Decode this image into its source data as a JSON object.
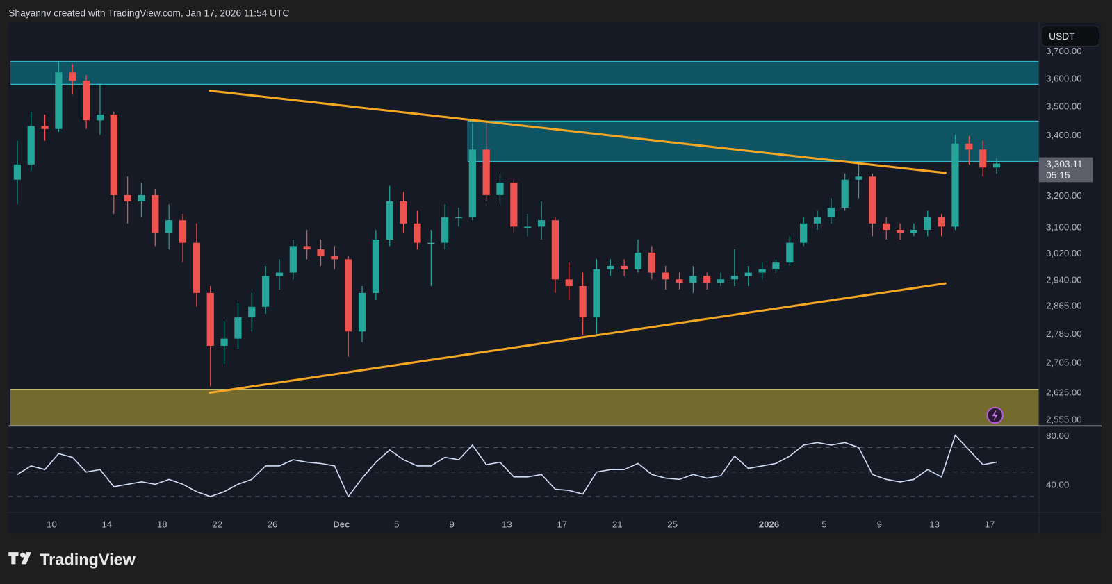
{
  "header": {
    "attribution": "Shayannv created with TradingView.com, Jan 17, 2026 11:54 UTC"
  },
  "logo": {
    "text": "TradingView"
  },
  "currency_button": {
    "label": "USDT"
  },
  "current_price": {
    "label": "3,303.11",
    "countdown": "05:15"
  },
  "colors": {
    "background": "#1e1e1e",
    "chart_bg": "#161a25",
    "up": "#26a69a",
    "down": "#ef5350",
    "resistance_zone": "#0f5463",
    "zone_border": "#2bb8cc",
    "support_zone": "#736b2d",
    "support_border": "#d6cf7a",
    "trendline": "#f5a623",
    "rsi_line": "#cfdcf5",
    "grid_dash": "#5a5e6a"
  },
  "chart_data": [
    {
      "type": "candlestick",
      "title": "",
      "y_scale": "log",
      "ylim": [
        2535,
        3720
      ],
      "grid": false,
      "y_ticks": [
        {
          "value": 3700,
          "label": "3,700.00"
        },
        {
          "value": 3600,
          "label": "3,600.00"
        },
        {
          "value": 3500,
          "label": "3,500.00"
        },
        {
          "value": 3400,
          "label": "3,400.00"
        },
        {
          "value": 3200,
          "label": "3,200.00"
        },
        {
          "value": 3100,
          "label": "3,100.00"
        },
        {
          "value": 3020,
          "label": "3,020.00"
        },
        {
          "value": 2940,
          "label": "2,940.00"
        },
        {
          "value": 2865,
          "label": "2,865.00"
        },
        {
          "value": 2785,
          "label": "2,785.00"
        },
        {
          "value": 2705,
          "label": "2,705.00"
        },
        {
          "value": 2625,
          "label": "2,625.00"
        },
        {
          "value": 2555,
          "label": "2,555.00"
        }
      ],
      "x_ticks": [
        {
          "date": "2025-11-10",
          "label": "10"
        },
        {
          "date": "2025-11-14",
          "label": "14"
        },
        {
          "date": "2025-11-18",
          "label": "18"
        },
        {
          "date": "2025-11-22",
          "label": "22"
        },
        {
          "date": "2025-11-26",
          "label": "26"
        },
        {
          "date": "2025-12-01",
          "label": "Dec"
        },
        {
          "date": "2025-12-05",
          "label": "5"
        },
        {
          "date": "2025-12-09",
          "label": "9"
        },
        {
          "date": "2025-12-13",
          "label": "13"
        },
        {
          "date": "2025-12-17",
          "label": "17"
        },
        {
          "date": "2025-12-21",
          "label": "21"
        },
        {
          "date": "2025-12-25",
          "label": "25"
        },
        {
          "date": "2026-01-01",
          "label": "2026"
        },
        {
          "date": "2026-01-05",
          "label": "5"
        },
        {
          "date": "2026-01-09",
          "label": "9"
        },
        {
          "date": "2026-01-13",
          "label": "13"
        },
        {
          "date": "2026-01-17",
          "label": "17"
        }
      ],
      "ohlc_columns": [
        "date",
        "open",
        "high",
        "low",
        "close"
      ],
      "ohlc": [
        [
          "2025-11-07",
          3250,
          3380,
          3170,
          3300
        ],
        [
          "2025-11-08",
          3300,
          3480,
          3280,
          3430
        ],
        [
          "2025-11-09",
          3430,
          3470,
          3380,
          3420
        ],
        [
          "2025-11-10",
          3420,
          3660,
          3410,
          3620
        ],
        [
          "2025-11-11",
          3620,
          3650,
          3540,
          3590
        ],
        [
          "2025-11-12",
          3590,
          3610,
          3420,
          3450
        ],
        [
          "2025-11-13",
          3450,
          3580,
          3400,
          3470
        ],
        [
          "2025-11-14",
          3470,
          3480,
          3140,
          3200
        ],
        [
          "2025-11-15",
          3200,
          3260,
          3110,
          3180
        ],
        [
          "2025-11-16",
          3180,
          3240,
          3130,
          3200
        ],
        [
          "2025-11-17",
          3200,
          3220,
          3040,
          3080
        ],
        [
          "2025-11-18",
          3080,
          3170,
          3030,
          3120
        ],
        [
          "2025-11-19",
          3120,
          3140,
          2990,
          3050
        ],
        [
          "2025-11-20",
          3050,
          3110,
          2860,
          2900
        ],
        [
          "2025-11-21",
          2900,
          2920,
          2640,
          2750
        ],
        [
          "2025-11-22",
          2750,
          2820,
          2700,
          2770
        ],
        [
          "2025-11-23",
          2770,
          2870,
          2740,
          2830
        ],
        [
          "2025-11-24",
          2830,
          2900,
          2790,
          2860
        ],
        [
          "2025-11-25",
          2860,
          2980,
          2840,
          2950
        ],
        [
          "2025-11-26",
          2950,
          3000,
          2910,
          2960
        ],
        [
          "2025-11-27",
          2960,
          3060,
          2940,
          3040
        ],
        [
          "2025-11-28",
          3040,
          3090,
          3000,
          3030
        ],
        [
          "2025-11-29",
          3030,
          3060,
          2980,
          3010
        ],
        [
          "2025-11-30",
          3010,
          3040,
          2970,
          3000
        ],
        [
          "2025-12-01",
          3000,
          3010,
          2720,
          2790
        ],
        [
          "2025-12-02",
          2790,
          2920,
          2760,
          2900
        ],
        [
          "2025-12-03",
          2900,
          3090,
          2880,
          3060
        ],
        [
          "2025-12-04",
          3060,
          3230,
          3040,
          3180
        ],
        [
          "2025-12-05",
          3180,
          3210,
          3080,
          3110
        ],
        [
          "2025-12-06",
          3110,
          3150,
          3030,
          3050
        ],
        [
          "2025-12-07",
          3050,
          3090,
          2920,
          3050
        ],
        [
          "2025-12-08",
          3050,
          3170,
          3030,
          3130
        ],
        [
          "2025-12-09",
          3130,
          3160,
          3100,
          3130
        ],
        [
          "2025-12-10",
          3130,
          3440,
          3120,
          3350
        ],
        [
          "2025-12-11",
          3350,
          3450,
          3180,
          3200
        ],
        [
          "2025-12-12",
          3200,
          3270,
          3170,
          3240
        ],
        [
          "2025-12-13",
          3240,
          3250,
          3080,
          3100
        ],
        [
          "2025-12-14",
          3100,
          3140,
          3070,
          3100
        ],
        [
          "2025-12-15",
          3100,
          3180,
          3060,
          3120
        ],
        [
          "2025-12-16",
          3120,
          3130,
          2900,
          2940
        ],
        [
          "2025-12-17",
          2940,
          2990,
          2880,
          2920
        ],
        [
          "2025-12-18",
          2920,
          2960,
          2780,
          2830
        ],
        [
          "2025-12-19",
          2830,
          3000,
          2780,
          2970
        ],
        [
          "2025-12-20",
          2970,
          3000,
          2950,
          2980
        ],
        [
          "2025-12-21",
          2980,
          3000,
          2950,
          2970
        ],
        [
          "2025-12-22",
          2970,
          3060,
          2960,
          3020
        ],
        [
          "2025-12-23",
          3020,
          3040,
          2940,
          2960
        ],
        [
          "2025-12-24",
          2960,
          2980,
          2910,
          2940
        ],
        [
          "2025-12-25",
          2940,
          2960,
          2910,
          2930
        ],
        [
          "2025-12-26",
          2930,
          2980,
          2900,
          2950
        ],
        [
          "2025-12-27",
          2950,
          2960,
          2910,
          2930
        ],
        [
          "2025-12-28",
          2930,
          2960,
          2920,
          2940
        ],
        [
          "2025-12-29",
          2940,
          3030,
          2920,
          2950
        ],
        [
          "2025-12-30",
          2950,
          2980,
          2920,
          2960
        ],
        [
          "2025-12-31",
          2960,
          2990,
          2940,
          2970
        ],
        [
          "2026-01-01",
          2970,
          3000,
          2960,
          2990
        ],
        [
          "2026-01-02",
          2990,
          3070,
          2980,
          3050
        ],
        [
          "2026-01-03",
          3050,
          3130,
          3040,
          3110
        ],
        [
          "2026-01-04",
          3110,
          3150,
          3090,
          3130
        ],
        [
          "2026-01-05",
          3130,
          3190,
          3110,
          3160
        ],
        [
          "2026-01-06",
          3160,
          3270,
          3150,
          3250
        ],
        [
          "2026-01-07",
          3250,
          3305,
          3190,
          3260
        ],
        [
          "2026-01-08",
          3260,
          3270,
          3070,
          3110
        ],
        [
          "2026-01-09",
          3110,
          3130,
          3060,
          3090
        ],
        [
          "2026-01-10",
          3090,
          3110,
          3060,
          3080
        ],
        [
          "2026-01-11",
          3080,
          3110,
          3070,
          3090
        ],
        [
          "2026-01-12",
          3090,
          3150,
          3070,
          3130
        ],
        [
          "2026-01-13",
          3130,
          3140,
          3070,
          3100
        ],
        [
          "2026-01-14",
          3100,
          3400,
          3090,
          3370
        ],
        [
          "2026-01-15",
          3370,
          3395,
          3300,
          3350
        ],
        [
          "2026-01-16",
          3350,
          3380,
          3260,
          3290
        ],
        [
          "2026-01-17",
          3290,
          3320,
          3270,
          3303.11
        ]
      ],
      "zones": [
        {
          "from_date": "2025-11-07",
          "low": 3577,
          "high": 3660,
          "kind": "resistance"
        },
        {
          "from_date": "2025-12-10T04:00",
          "low": 3310,
          "high": 3447,
          "kind": "resistance"
        },
        {
          "from_date": "2025-11-07",
          "low": 2535,
          "high": 2632,
          "kind": "support"
        }
      ],
      "trendlines": [
        {
          "start": {
            "date": "2025-11-21T11:00",
            "price": 3554
          },
          "end": {
            "date": "2026-01-13T19:00",
            "price": 3272
          }
        },
        {
          "start": {
            "date": "2025-11-21T11:00",
            "price": 2623
          },
          "end": {
            "date": "2026-01-13T19:00",
            "price": 2928
          }
        }
      ]
    },
    {
      "type": "line",
      "title": "",
      "ylim": [
        20,
        90
      ],
      "y_ticks": [
        {
          "value": 80,
          "label": "80.00"
        },
        {
          "value": 40,
          "label": "40.00"
        }
      ],
      "bands": [
        70,
        50,
        30
      ],
      "values": [
        48,
        55,
        52,
        65,
        62,
        50,
        52,
        38,
        40,
        42,
        40,
        44,
        40,
        34,
        30,
        34,
        40,
        44,
        55,
        55,
        60,
        58,
        57,
        55,
        30,
        45,
        58,
        68,
        60,
        55,
        55,
        62,
        60,
        72,
        56,
        58,
        46,
        46,
        48,
        36,
        35,
        32,
        50,
        52,
        52,
        57,
        48,
        45,
        44,
        48,
        45,
        47,
        63,
        53,
        55,
        57,
        63,
        72,
        74,
        72,
        74,
        70,
        48,
        44,
        42,
        44,
        52,
        46,
        80,
        68,
        56,
        58
      ]
    }
  ]
}
